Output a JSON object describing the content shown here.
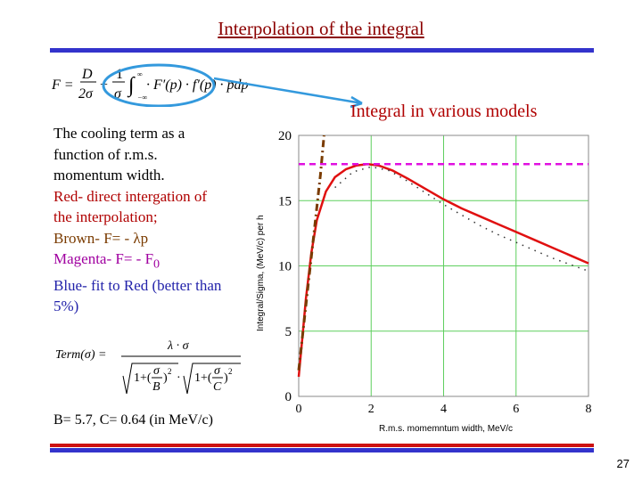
{
  "title": "Interpolation of the integral",
  "description": {
    "line1": "The cooling term as a",
    "line2": "function of r.m.s.",
    "line3": "momentum width.",
    "red_line1": "Red- direct intergation of",
    "red_line2": "the interpolation;",
    "brown_line": "Brown- F= - λp",
    "magenta_line_prefix": "Magenta- F= - F",
    "magenta_sub": "0",
    "blue_line1": "Blue- fit to Red (better than",
    "blue_line2": "5%)"
  },
  "params_text": "B= 5.7, C= 0.64 (in MeV/c)",
  "page_number": "27",
  "chart_data": {
    "type": "line",
    "title": "Integral in various models",
    "xlabel": "R.m.s. momemntum width, MeV/c",
    "ylabel": "Integral/Sigma, (MeV/c) per h",
    "xlim": [
      0,
      8
    ],
    "ylim": [
      0,
      20
    ],
    "x_ticks": [
      "0",
      "2",
      "4",
      "6",
      "8"
    ],
    "y_ticks": [
      "0",
      "5",
      "10",
      "15",
      "20"
    ],
    "grid": true,
    "series": [
      {
        "color": "#e01010",
        "style": "solid",
        "x": [
          0,
          0.1,
          0.2,
          0.35,
          0.5,
          0.75,
          1.0,
          1.3,
          1.6,
          1.9,
          2.2,
          2.6,
          3.0,
          3.5,
          4.0,
          4.5,
          5.0,
          5.5,
          6.0,
          6.5,
          7.0,
          7.5,
          8.0
        ],
        "values": [
          1.5,
          4.5,
          7.5,
          11.0,
          13.5,
          15.7,
          16.8,
          17.4,
          17.7,
          17.8,
          17.7,
          17.3,
          16.7,
          15.9,
          15.1,
          14.4,
          13.8,
          13.2,
          12.6,
          12.0,
          11.4,
          10.8,
          10.2
        ]
      },
      {
        "color": "#7a3b00",
        "style": "dashdot",
        "x": [
          0,
          0.2,
          0.4,
          0.6,
          0.7
        ],
        "values": [
          2.0,
          7.0,
          12.0,
          17.0,
          20.0
        ]
      },
      {
        "color": "#e010e0",
        "style": "dashed",
        "x": [
          0,
          8
        ],
        "values": [
          17.8,
          17.8
        ]
      },
      {
        "color": "#333333",
        "style": "dotted",
        "x": [
          1.0,
          1.5,
          2.0,
          2.5,
          3.0,
          3.5,
          4.0,
          4.5,
          5.0,
          5.5,
          6.0,
          6.5,
          7.0,
          7.5,
          8.0
        ],
        "values": [
          16.0,
          17.2,
          17.6,
          17.3,
          16.5,
          15.6,
          14.7,
          13.9,
          13.1,
          12.4,
          11.8,
          11.2,
          10.6,
          10.1,
          9.6
        ]
      }
    ]
  },
  "colors": {
    "title": "#8b0000",
    "rule_blue": "#3333cc",
    "rule_red": "#cc1111",
    "ellipse": "#3399dd",
    "grid": "#5fcf5f"
  }
}
